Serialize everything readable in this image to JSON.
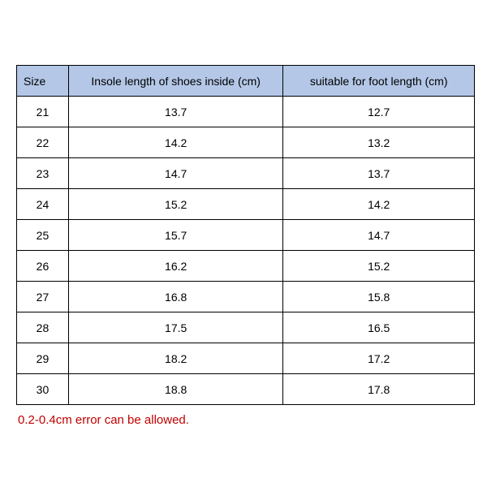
{
  "table": {
    "columns": [
      "Size",
      "Insole length of shoes inside (cm)",
      "suitable for foot length (cm)"
    ],
    "rows": [
      [
        "21",
        "13.7",
        "12.7"
      ],
      [
        "22",
        "14.2",
        "13.2"
      ],
      [
        "23",
        "14.7",
        "13.7"
      ],
      [
        "24",
        "15.2",
        "14.2"
      ],
      [
        "25",
        "15.7",
        "14.7"
      ],
      [
        "26",
        "16.2",
        "15.2"
      ],
      [
        "27",
        "16.8",
        "15.8"
      ],
      [
        "28",
        "17.5",
        "16.5"
      ],
      [
        "29",
        "18.2",
        "17.2"
      ],
      [
        "30",
        "18.8",
        "17.8"
      ]
    ],
    "header_bg": "#b4c7e7",
    "border_color": "#000000",
    "text_color": "#000000",
    "font_size": 14
  },
  "footer": {
    "text": "0.2-0.4cm error can be allowed.",
    "color": "#c00000",
    "font_size": 15
  }
}
